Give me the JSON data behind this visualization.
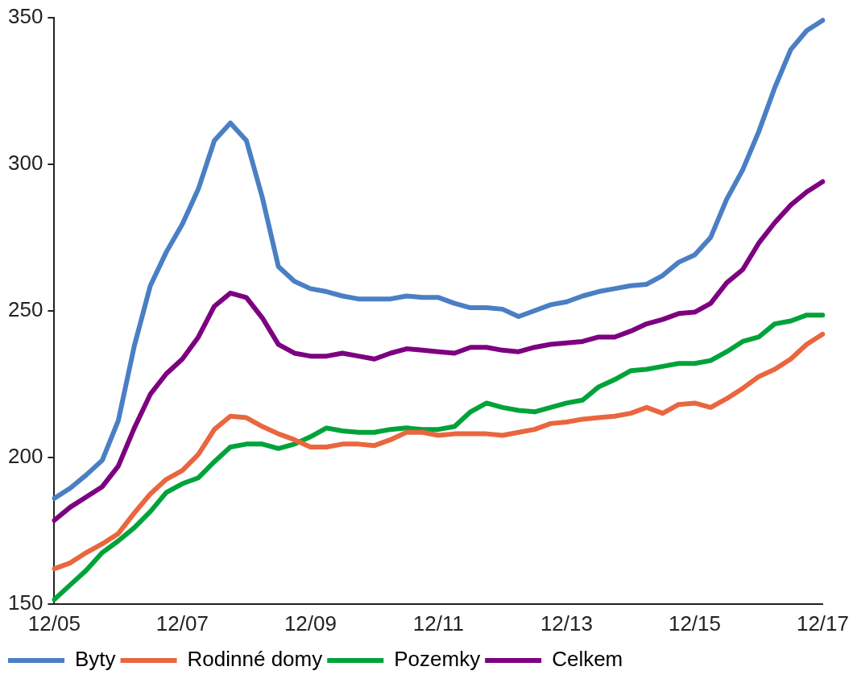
{
  "chart_data": {
    "type": "line",
    "categories": [
      "12/05",
      null,
      null,
      null,
      null,
      null,
      null,
      null,
      "12/07",
      null,
      null,
      null,
      null,
      null,
      null,
      null,
      "12/09",
      null,
      null,
      null,
      null,
      null,
      null,
      null,
      "12/11",
      null,
      null,
      null,
      null,
      null,
      null,
      null,
      "12/13",
      null,
      null,
      null,
      null,
      null,
      null,
      null,
      "12/15",
      null,
      null,
      null,
      null,
      null,
      null,
      null,
      "12/17"
    ],
    "series": [
      {
        "name": "Byty",
        "color": "#4a7fc4",
        "values": [
          186,
          189.5,
          194,
          199,
          212.5,
          238,
          258.5,
          270,
          279.5,
          291.5,
          308,
          314,
          308,
          288.5,
          265,
          260,
          257.5,
          256.5,
          255,
          254,
          254,
          254,
          255,
          254.5,
          254.5,
          252.5,
          251,
          251,
          250.5,
          248,
          250,
          252,
          253,
          255,
          256.5,
          257.5,
          258.5,
          259,
          262,
          266.5,
          269,
          275,
          288,
          298,
          311,
          326,
          339,
          345.5,
          349
        ]
      },
      {
        "name": "Rodinné domy",
        "color": "#e9663f",
        "values": [
          162,
          164,
          167.5,
          170.5,
          174,
          181,
          187.5,
          192.5,
          195.5,
          201,
          209.5,
          214,
          213.5,
          210.5,
          208,
          206,
          203.5,
          203.5,
          204.5,
          204.5,
          204,
          206,
          208.5,
          208.5,
          207.5,
          208,
          208,
          208,
          207.5,
          208.5,
          209.5,
          211.5,
          212,
          213,
          213.5,
          214,
          215,
          217,
          215,
          218,
          218.5,
          217,
          220,
          223.5,
          227.5,
          230,
          233.5,
          238.5,
          242
        ]
      },
      {
        "name": "Pozemky",
        "color": "#00a33a",
        "values": [
          151.5,
          156.5,
          161.5,
          167.5,
          171.5,
          176,
          181.5,
          188,
          191,
          193,
          198.5,
          203.5,
          204.5,
          204.5,
          203,
          204.5,
          207,
          210,
          209,
          208.5,
          208.5,
          209.5,
          210,
          209.5,
          209.5,
          210.5,
          215.5,
          218.5,
          217,
          216,
          215.5,
          217,
          218.5,
          219.5,
          224,
          226.5,
          229.5,
          230,
          231,
          232,
          232,
          233,
          236,
          239.5,
          241,
          245.5,
          246.5,
          248.5,
          248.5
        ]
      },
      {
        "name": "Celkem",
        "color": "#7d0080",
        "values": [
          178.5,
          183,
          186.5,
          190,
          197,
          210,
          221.5,
          228.5,
          233.5,
          241,
          251.5,
          256,
          254.5,
          247.5,
          238.5,
          235.5,
          234.5,
          234.5,
          235.5,
          234.5,
          233.5,
          235.5,
          237,
          236.5,
          236,
          235.5,
          237.5,
          237.5,
          236.5,
          236,
          237.5,
          238.5,
          239,
          239.5,
          241,
          241,
          243,
          245.5,
          247,
          249,
          249.5,
          252.5,
          259.5,
          264,
          273,
          280,
          286,
          290.5,
          294
        ]
      }
    ],
    "ylim": [
      150,
      350
    ],
    "yticks": [
      150,
      200,
      250,
      300,
      350
    ],
    "grid": false,
    "legend": "bottom",
    "marker": "none",
    "line_style": "solid"
  }
}
